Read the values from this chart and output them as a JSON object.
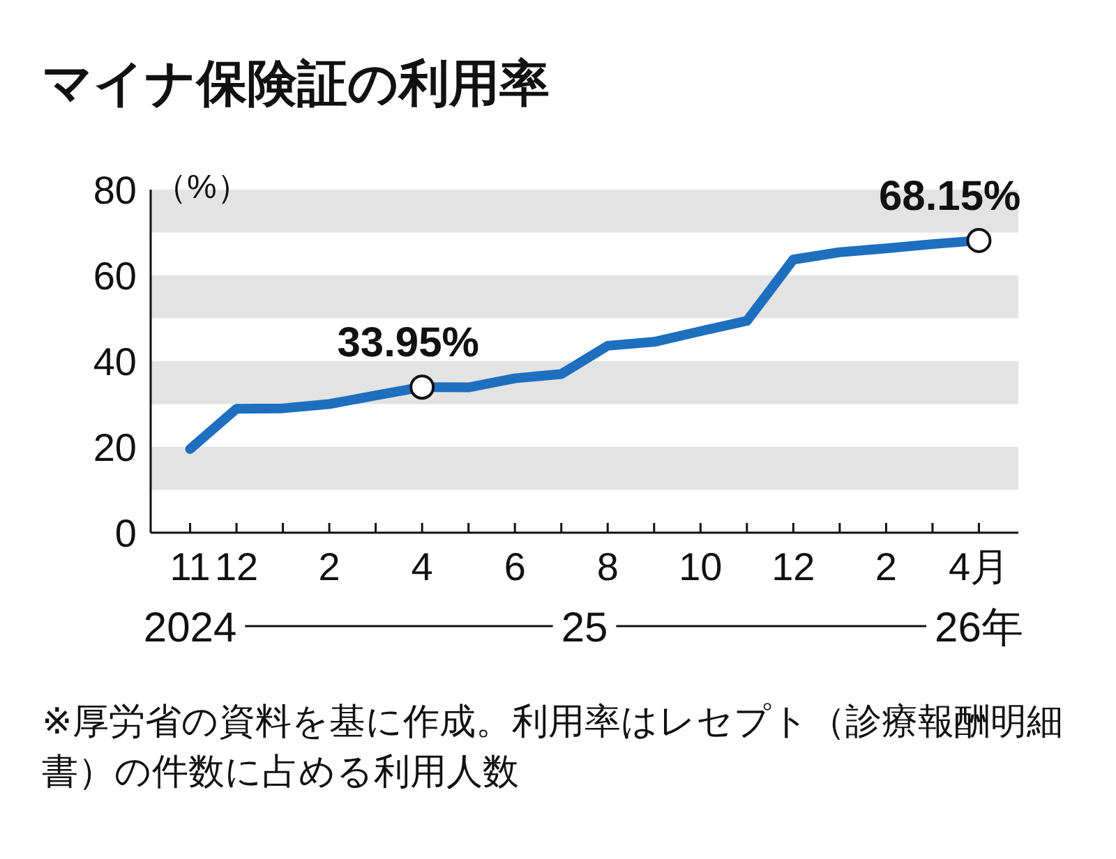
{
  "chart_data": {
    "type": "line",
    "title": "マイナ保険証の利用率",
    "ylabel": "（%）",
    "categories": [
      "11",
      "12",
      null,
      "2",
      null,
      "4",
      null,
      "6",
      null,
      "8",
      null,
      "10",
      null,
      "12",
      null,
      "2",
      null,
      "4月"
    ],
    "series": [
      {
        "color": "#1e6fbe",
        "values": [
          19.5,
          28.9,
          29,
          30,
          32,
          33.95,
          33.9,
          36,
          37,
          43.6,
          44.5,
          47,
          49.4,
          63.7,
          65.4,
          66.3,
          67.3,
          68.15
        ],
        "value_labels": [
          null,
          null,
          null,
          null,
          null,
          "33.95%",
          null,
          null,
          null,
          null,
          null,
          null,
          null,
          null,
          null,
          null,
          null,
          "68.15%"
        ]
      }
    ],
    "ylim": [
      0,
      80
    ],
    "yticks": [
      0,
      20,
      40,
      60,
      80
    ],
    "bands": [
      {
        "axis": "y",
        "from": 10,
        "to": 20,
        "color": "#e3e3e3"
      },
      {
        "axis": "y",
        "from": 30,
        "to": 40,
        "color": "#e3e3e3"
      },
      {
        "axis": "y",
        "from": 50,
        "to": 60,
        "color": "#e3e3e3"
      },
      {
        "axis": "y",
        "from": 70,
        "to": 80,
        "color": "#e3e3e3"
      }
    ],
    "annotations": [
      "2024",
      "25",
      "26年",
      "※厚労省の資料を基に作成。利用率はレセプト（診療報酬明細書）の件数に占める利用人数"
    ]
  }
}
